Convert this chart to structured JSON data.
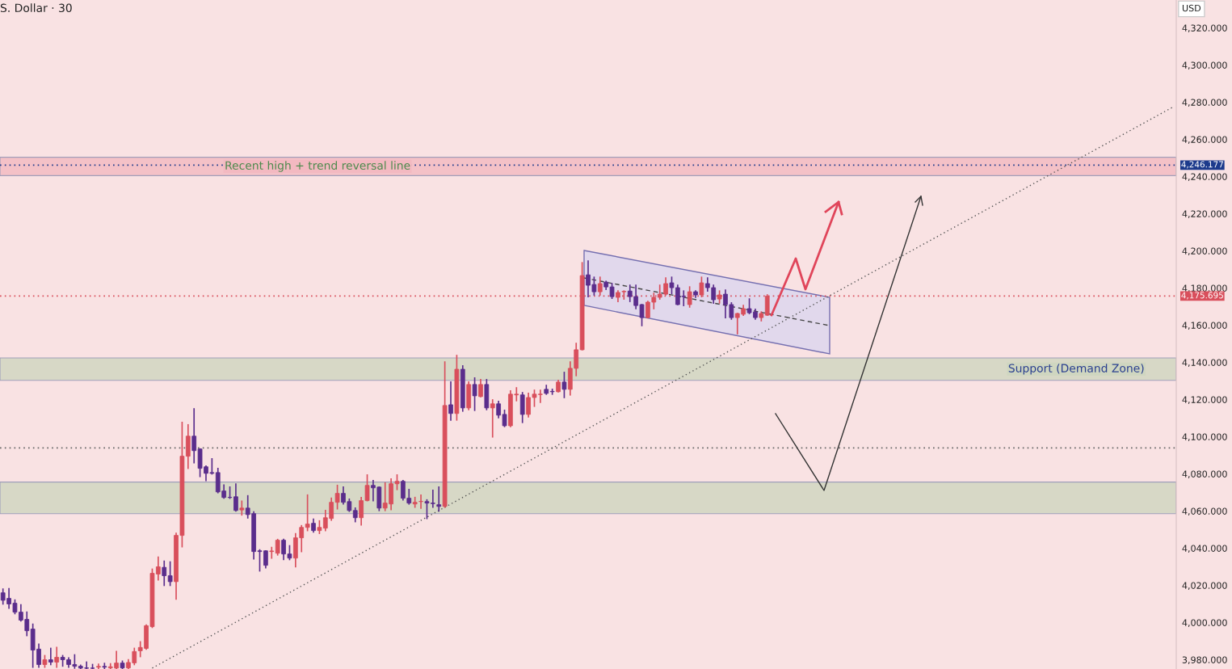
{
  "chart_data": {
    "type": "candlestick",
    "title": "S. Dollar · 30",
    "annotations": [
      "USD"
    ],
    "categories": [
      null,
      null,
      null,
      null,
      null,
      null,
      null,
      null,
      null,
      null,
      null,
      null,
      null,
      null,
      null,
      null,
      null,
      null,
      null,
      null,
      null,
      null,
      null,
      null,
      null,
      null,
      null,
      null,
      null,
      null,
      null,
      null,
      null,
      null,
      null,
      null,
      null,
      null,
      null,
      null,
      null,
      null,
      null,
      null,
      null,
      null,
      null,
      null,
      null,
      null,
      null,
      null,
      null,
      null,
      null,
      null,
      null,
      null,
      null,
      null,
      null,
      null,
      null,
      null,
      null,
      null,
      null,
      null,
      null,
      null,
      null,
      null,
      null,
      null,
      null,
      null,
      null,
      null,
      null,
      null,
      null,
      null,
      null,
      null,
      null,
      null,
      null,
      null,
      null,
      null,
      null,
      null,
      null,
      null,
      null,
      null,
      null,
      null,
      null,
      null,
      null,
      null,
      null,
      null,
      null,
      null,
      null,
      null,
      null,
      null,
      null,
      null,
      null,
      null,
      null,
      null,
      null,
      null,
      null,
      null,
      null,
      null,
      null,
      null,
      null,
      null,
      null,
      null,
      null,
      null,
      null,
      null,
      null,
      null,
      null,
      null,
      null,
      null,
      null,
      null,
      null,
      null,
      null,
      null,
      null,
      null,
      null,
      null,
      null,
      null,
      null,
      null,
      null,
      null,
      null,
      null,
      null,
      null,
      null,
      null,
      null,
      null,
      null,
      null,
      null,
      null,
      null,
      null,
      null,
      null,
      null,
      null,
      null,
      null,
      null,
      null,
      null,
      null,
      null,
      null,
      null,
      null,
      null,
      null,
      null,
      null,
      null,
      null,
      null,
      null,
      null,
      null,
      null,
      null,
      null,
      null,
      null
    ],
    "series": [
      {
        "type": "line",
        "color": "#555555",
        "line_style": "dotted",
        "values": [
          null,
          null,
          null,
          null,
          null,
          null,
          null,
          null,
          null,
          null,
          null,
          null,
          null,
          null,
          null,
          null,
          null,
          null,
          null,
          null,
          null,
          null,
          null,
          null,
          null,
          3975.5,
          null,
          null,
          null,
          null,
          null,
          null,
          null,
          null,
          null,
          null,
          null,
          null,
          null,
          null,
          null,
          null,
          null,
          null,
          null,
          null,
          null,
          null,
          null,
          null,
          null,
          null,
          null,
          null,
          null,
          null,
          null,
          null,
          null,
          null,
          null,
          null,
          null,
          null,
          null,
          null,
          null,
          null,
          null,
          null,
          null,
          null,
          null,
          null,
          null,
          null,
          null,
          null,
          null,
          null,
          null,
          null,
          null,
          null,
          null,
          null,
          null,
          null,
          null,
          null,
          null,
          null,
          null,
          null,
          null,
          null,
          null,
          null,
          null,
          null,
          null,
          null,
          null,
          null,
          null,
          null,
          null,
          null,
          null,
          null,
          null,
          null,
          null,
          null,
          null,
          null,
          null,
          null,
          null,
          null,
          null,
          null,
          null,
          null,
          null,
          null,
          null,
          null,
          null,
          null,
          null,
          null,
          null,
          null,
          null,
          null,
          null,
          null,
          null,
          null,
          null,
          null,
          null,
          null,
          null,
          null,
          null,
          null,
          null,
          null,
          null,
          null,
          null,
          null,
          null,
          null,
          null,
          null,
          null,
          null,
          null,
          null,
          null,
          null,
          null,
          null,
          null,
          null,
          null,
          null,
          null,
          null,
          null,
          null,
          null,
          null,
          null,
          null,
          null,
          null,
          null,
          null,
          null,
          null,
          null,
          null,
          null,
          null,
          null,
          null,
          null,
          null,
          null,
          null,
          null,
          null,
          4277.5
        ]
      }
    ],
    "ohlc": [
      [
        4016,
        4018,
        4010,
        4012
      ],
      [
        4013.0,
        4018.2,
        4007.8,
        4010.0
      ],
      [
        4010.4,
        4012.1,
        4004.8,
        4005.6
      ],
      [
        4005.6,
        4009.5,
        4000.9,
        4001.3
      ],
      [
        4001.7,
        4005.6,
        3993.0,
        3995.6
      ],
      [
        3996.5,
        3999.1,
        3976,
        3985.2
      ],
      [
        3985.7,
        3988.3,
        3976,
        3977.4
      ],
      [
        3977.4,
        3982.2,
        3976,
        3980
      ],
      [
        3980,
        3986.1,
        3977.4,
        3978.7
      ],
      [
        3978.7,
        3986.6,
        3976,
        3981.3
      ],
      [
        3981.3,
        3982.2,
        3976.6,
        3980
      ],
      [
        3980,
        3980.9,
        3976,
        3977.4
      ],
      [
        3977.4,
        3982.6,
        3975.5,
        3976.5
      ],
      [
        3976.5,
        3977,
        3975.2,
        3975.5
      ],
      [
        3975.6,
        3978.7,
        3975.2,
        3975.4
      ],
      [
        3975.5,
        3977.4,
        3975.2,
        3975.4
      ],
      [
        3976.0,
        3977.6,
        3975.2,
        3976.4
      ],
      [
        3976.4,
        3978.0,
        3975.2,
        3976.0
      ],
      [
        3975.6,
        3977.8,
        3975.2,
        3976.2
      ],
      [
        3975.5,
        3984.4,
        3975.2,
        3978.2
      ],
      [
        3978.2,
        3979.2,
        3975.2,
        3975.6
      ],
      [
        3975.6,
        3980,
        3975.2,
        3978.5
      ],
      [
        3978.3,
        3986.1,
        3977.4,
        3984.4
      ],
      [
        3984.8,
        3989.6,
        3981.7,
        3986.6
      ],
      [
        3986.1,
        3998.7,
        3985.7,
        3998.3
      ],
      [
        3997.8,
        4028.7,
        3997.4,
        4026.5
      ],
      [
        4026.1,
        4035.2,
        4023,
        4030
      ],
      [
        4029.7,
        4033,
        4020,
        4025.2
      ],
      [
        4025.2,
        4032.6,
        4020,
        4022
      ],
      [
        4022,
        4048,
        4012.6,
        4046.9
      ],
      [
        4046.9,
        4107.7,
        4040.8,
        4089.5
      ],
      [
        4089.5,
        4106.4,
        4083,
        4100.3
      ],
      [
        4100.3,
        4115,
        4086,
        4092.5
      ],
      [
        4093.4,
        4093.4,
        4078.6,
        4083
      ],
      [
        4083.8,
        4084.2,
        4076.4,
        4080.3
      ],
      [
        4080.7,
        4088.1,
        4080.0,
        4080.3
      ],
      [
        4080.7,
        4082.9,
        4069.9,
        4070.3
      ],
      [
        4070.8,
        4074,
        4067,
        4067.3
      ],
      [
        4067.4,
        4072.9,
        4066.9,
        4067.3
      ],
      [
        4067.7,
        4074.5,
        4060,
        4060.3
      ],
      [
        4060.6,
        4065.3,
        4057.9,
        4061.6
      ],
      [
        4061.6,
        4068.2,
        4056.3,
        4058.1
      ],
      [
        4058.6,
        4059.5,
        4034.3,
        4038.2
      ],
      [
        4038.6,
        4039.1,
        4027.8,
        4038.2
      ],
      [
        4038.6,
        4038.6,
        4029.5,
        4030.8
      ],
      [
        4038.2,
        4040.4,
        4034.7,
        4038.5
      ],
      [
        4037.3,
        4044.7,
        4036.4,
        4044.3
      ],
      [
        4044.3,
        4044.7,
        4033.9,
        4036.9
      ],
      [
        4036.9,
        4041.3,
        4033.9,
        4034.7
      ],
      [
        4034.7,
        4047.8,
        4030,
        4045.6
      ],
      [
        4045.6,
        4052.1,
        4038.2,
        4051.2
      ],
      [
        4051.2,
        4068.6,
        4049.5,
        4053
      ],
      [
        4053.4,
        4055.6,
        4048.7,
        4049.5
      ],
      [
        4049.5,
        4054.7,
        4048,
        4051.2
      ],
      [
        4050.8,
        4060.3,
        4049.5,
        4056.4
      ],
      [
        4056.0,
        4066.9,
        4055.1,
        4064.7
      ],
      [
        4064.7,
        4073.8,
        4061.2,
        4069.5
      ],
      [
        4069.5,
        4072.9,
        4063.8,
        4064.7
      ],
      [
        4065.1,
        4066.4,
        4059.9,
        4060.3
      ],
      [
        4060.3,
        4061.6,
        4054.3,
        4056.4
      ],
      [
        4056.4,
        4067.3,
        4052.5,
        4065.6
      ],
      [
        4065.6,
        4079.4,
        4065.6,
        4073.8
      ],
      [
        4073.8,
        4076.4,
        4065.6,
        4072.5
      ],
      [
        4072.9,
        4072.9,
        4060.3,
        4061.6
      ],
      [
        4061.6,
        4075.1,
        4060.3,
        4064.3
      ],
      [
        4063.8,
        4077.3,
        4060.8,
        4074.7
      ],
      [
        4074.7,
        4079.4,
        4071.6,
        4076
      ],
      [
        4076,
        4076.4,
        4066,
        4066.9
      ],
      [
        4066.9,
        4071.6,
        4063.8,
        4064.3
      ],
      [
        4063.8,
        4067.3,
        4062.1,
        4064.7
      ],
      [
        4065.1,
        4068.6,
        4061.6,
        4065.2
      ],
      [
        4065.1,
        4066,
        4056,
        4064.3
      ],
      [
        4064.3,
        4071.2,
        4062.1,
        4064.0
      ],
      [
        4063.4,
        4072.9,
        4060,
        4062.5
      ],
      [
        4062.5,
        4140.2,
        4062.1,
        4116.8
      ],
      [
        4117.2,
        4129.4,
        4109,
        4112.5
      ],
      [
        4112.5,
        4143.7,
        4109,
        4136.3
      ],
      [
        4136.3,
        4138.1,
        4113.8,
        4115.5
      ],
      [
        4115.5,
        4129.4,
        4114.6,
        4128.1
      ],
      [
        4128.1,
        4131.6,
        4114.2,
        4122.0
      ],
      [
        4121.6,
        4130.7,
        4121.6,
        4128.1
      ],
      [
        4128.1,
        4130.7,
        4114.6,
        4115.5
      ],
      [
        4115.5,
        4119.8,
        4099.9,
        4117.7
      ],
      [
        4117.7,
        4119,
        4110.3,
        4111.6
      ],
      [
        4112.0,
        4114.2,
        4105.5,
        4105.9
      ],
      [
        4105.9,
        4124.6,
        4105.5,
        4122.9
      ],
      [
        4122.5,
        4126.3,
        4119.4,
        4122.9
      ],
      [
        4122.5,
        4123.7,
        4107.7,
        4112.0
      ],
      [
        4112.0,
        4123.3,
        4110.7,
        4121.1
      ],
      [
        4121.1,
        4125,
        4116.4,
        4122.9
      ],
      [
        4122.7,
        4125,
        4118.5,
        4122.9
      ],
      [
        4125.5,
        4127.6,
        4122.9,
        4123.3
      ],
      [
        4124.4,
        4125.5,
        4122.9,
        4124.2
      ],
      [
        4124.2,
        4130.3,
        4124.2,
        4129.4
      ],
      [
        4129.4,
        4134.6,
        4121.1,
        4125.5
      ],
      [
        4125.5,
        4140.2,
        4122.5,
        4136.8
      ],
      [
        4136.8,
        4150.2,
        4132.9,
        4146.8
      ],
      [
        4146.8,
        4193.6,
        4146.8,
        4186.7
      ],
      [
        4187.1,
        4194.5,
        4175.4,
        4181.5
      ],
      [
        4181.9,
        4185.8,
        4176.3,
        4178.0
      ],
      [
        4178.0,
        4185.8,
        4176.3,
        4182.4
      ],
      [
        4183.2,
        4183.6,
        4179.3,
        4180.6
      ],
      [
        4180.6,
        4182.4,
        4174.5,
        4175.4
      ],
      [
        4175.0,
        4178.4,
        4172.8,
        4177.6
      ],
      [
        4178.0,
        4178.4,
        4174.1,
        4178.2
      ],
      [
        4178.4,
        4181.5,
        4172.8,
        4175.4
      ],
      [
        4175.4,
        4181.5,
        4168.9,
        4170.6
      ],
      [
        4171.1,
        4171.1,
        4159.8,
        4164.1
      ],
      [
        4164.1,
        4172.8,
        4164.1,
        4172.4
      ],
      [
        4172.4,
        4177.1,
        4168.9,
        4175.0
      ],
      [
        4175.0,
        4181.5,
        4174.1,
        4176.7
      ],
      [
        4176.7,
        4185.4,
        4176.3,
        4182.4
      ],
      [
        4182.8,
        4185.8,
        4177.1,
        4180.2
      ],
      [
        4180.2,
        4181.5,
        4171.1,
        4171.1
      ],
      [
        4175.6,
        4178.4,
        4170.6,
        4175.4
      ],
      [
        4171.1,
        4180.6,
        4169.8,
        4178.0
      ],
      [
        4178.0,
        4178.4,
        4175.0,
        4176.3
      ],
      [
        4176.3,
        4185.8,
        4175.4,
        4182.8
      ],
      [
        4182.4,
        4185.4,
        4178.4,
        4180.2
      ],
      [
        4180.2,
        4181.5,
        4171.9,
        4173.7
      ],
      [
        4174.1,
        4178.4,
        4172.0,
        4176.3
      ],
      [
        4176.7,
        4178.9,
        4164.1,
        4171.1
      ],
      [
        4171.1,
        4172.0,
        4163.3,
        4164.1
      ],
      [
        4164.1,
        4166.3,
        4155.4,
        4166.3
      ],
      [
        4165.9,
        4170.6,
        4165.4,
        4168.9
      ],
      [
        4168.9,
        4174.1,
        4166.3,
        4166.7
      ],
      [
        4167.1,
        4168.5,
        4163.3,
        4164.1
      ],
      [
        4164.1,
        4167.1,
        4162.4,
        4166.3
      ],
      [
        4165.4,
        4176.3,
        4165.4,
        4175.6
      ],
      null,
      null,
      null,
      null,
      null,
      null,
      null,
      null,
      null,
      null,
      null,
      null,
      null,
      null,
      null,
      null,
      null,
      null,
      null,
      null,
      null,
      null,
      null,
      null,
      null,
      null,
      null,
      null,
      null,
      null,
      null,
      null,
      null,
      null,
      null,
      null,
      null,
      null,
      null,
      null,
      null,
      null,
      null,
      null,
      null,
      null,
      null,
      null,
      null,
      null,
      null,
      null,
      null,
      null,
      null,
      null,
      null,
      null,
      null,
      null,
      null,
      null,
      null,
      null,
      null,
      null,
      null,
      null
    ],
    "colors": [
      "#5a2d8c",
      "#5a2d8c",
      "#5a2d8c",
      "#5a2d8c",
      "#5a2d8c",
      "#5a2d8c",
      "#5a2d8c",
      "#d94f5c",
      "#5a2d8c",
      "#d94f5c",
      "#5a2d8c",
      "#5a2d8c",
      "#5a2d8c",
      "#5a2d8c",
      "#5a2d8c",
      "#5a2d8c",
      "#d94f5c",
      "#5a2d8c",
      "#d94f5c",
      "#d94f5c",
      "#5a2d8c",
      "#d94f5c",
      "#d94f5c",
      "#d94f5c",
      "#d94f5c",
      "#d94f5c",
      "#d94f5c",
      "#5a2d8c",
      "#5a2d8c",
      "#d94f5c",
      "#d94f5c",
      "#d94f5c",
      "#5a2d8c",
      "#5a2d8c",
      "#5a2d8c",
      "#5a2d8c",
      "#5a2d8c",
      "#5a2d8c",
      "#5a2d8c",
      "#5a2d8c",
      "#d94f5c",
      "#5a2d8c",
      "#5a2d8c",
      "#5a2d8c",
      "#5a2d8c",
      "#d94f5c",
      "#d94f5c",
      "#5a2d8c",
      "#5a2d8c",
      "#d94f5c",
      "#d94f5c",
      "#d94f5c",
      "#5a2d8c",
      "#d94f5c",
      "#d94f5c",
      "#d94f5c",
      "#d94f5c",
      "#5a2d8c",
      "#5a2d8c",
      "#5a2d8c",
      "#d94f5c",
      "#d94f5c",
      "#5a2d8c",
      "#5a2d8c",
      "#d94f5c",
      "#d94f5c",
      "#d94f5c",
      "#5a2d8c",
      "#5a2d8c",
      "#d94f5c",
      "#d94f5c",
      "#5a2d8c",
      "#5a2d8c",
      "#5a2d8c",
      "#d94f5c",
      "#5a2d8c",
      "#d94f5c",
      "#5a2d8c",
      "#d94f5c",
      "#5a2d8c",
      "#d94f5c",
      "#5a2d8c",
      "#d94f5c",
      "#5a2d8c",
      "#5a2d8c",
      "#d94f5c",
      "#d94f5c",
      "#5a2d8c",
      "#d94f5c",
      "#d94f5c",
      "#d94f5c",
      "#5a2d8c",
      "#5a2d8c",
      "#d94f5c",
      "#5a2d8c",
      "#d94f5c",
      "#d94f5c",
      "#d94f5c",
      "#5a2d8c",
      "#5a2d8c",
      "#d94f5c",
      "#5a2d8c",
      "#5a2d8c",
      "#d94f5c",
      "#d94f5c",
      "#5a2d8c",
      "#5a2d8c",
      "#5a2d8c",
      "#d94f5c",
      "#d94f5c",
      "#d94f5c",
      "#d94f5c",
      "#5a2d8c",
      "#5a2d8c",
      "#5a2d8c",
      "#d94f5c",
      "#5a2d8c",
      "#d94f5c",
      "#5a2d8c",
      "#5a2d8c",
      "#d94f5c",
      "#5a2d8c",
      "#5a2d8c",
      "#d94f5c",
      "#d94f5c",
      "#5a2d8c",
      "#5a2d8c",
      "#d94f5c",
      "#d94f5c",
      null,
      null,
      null,
      null,
      null,
      null,
      null,
      null,
      null,
      null,
      null,
      null,
      null,
      null,
      null,
      null,
      null,
      null,
      null,
      null,
      null,
      null,
      null,
      null,
      null,
      null,
      null,
      null,
      null,
      null,
      null,
      null,
      null,
      null,
      null,
      null,
      null,
      null,
      null,
      null,
      null,
      null,
      null,
      null,
      null,
      null,
      null,
      null,
      null,
      null,
      null,
      null,
      null,
      null,
      null,
      null,
      null,
      null,
      null,
      null,
      null,
      null,
      null,
      null,
      null,
      null,
      null,
      null
    ],
    "ylim": [
      3975,
      4335
    ],
    "yticks": [
      {
        "value": 3980,
        "label": "3,980.000"
      },
      {
        "value": 4000,
        "label": "4,000.000"
      },
      {
        "value": 4020,
        "label": "4,020.000"
      },
      {
        "value": 4040,
        "label": "4,040.000"
      },
      {
        "value": 4060,
        "label": "4,060.000"
      },
      {
        "value": 4080,
        "label": "4,080.000"
      },
      {
        "value": 4100,
        "label": "4,100.000"
      },
      {
        "value": 4120,
        "label": "4,120.000"
      },
      {
        "value": 4140,
        "label": "4,140.000"
      },
      {
        "value": 4160,
        "label": "4,160.000"
      },
      {
        "value": 4180,
        "label": "4,180.000"
      },
      {
        "value": 4200,
        "label": "4,200.000"
      },
      {
        "value": 4220,
        "label": "4,220.000"
      },
      {
        "value": 4240,
        "label": "4,240.000"
      },
      {
        "value": 4260,
        "label": "4,260.000"
      },
      {
        "value": 4280,
        "label": "4,280.000"
      },
      {
        "value": 4300,
        "label": "4,300.000"
      },
      {
        "value": 4320,
        "label": "4,320.000"
      }
    ],
    "ref_lines": [
      {
        "axis": "y",
        "value": 4246.177,
        "label": "4,246.177",
        "color": "#1c3a8c",
        "line_style": "dotted"
      },
      {
        "axis": "y",
        "value": 4175.695,
        "label": "4,175.695",
        "color": "#d94f5c",
        "line_style": "dotted"
      },
      {
        "axis": "y",
        "value": 4094,
        "color": "#666666",
        "line_style": "dotted"
      }
    ],
    "bands": [
      {
        "axis": "y",
        "from": 4240.5,
        "to": 4250.4,
        "label": "Recent high + trend reversal line",
        "color": "#f3b9c1"
      },
      {
        "axis": "y",
        "from": 4130.3,
        "to": 4142.4,
        "label": "Support (Demand Zone)",
        "color": "#cfd6c0"
      },
      {
        "axis": "y",
        "from": 4058.6,
        "to": 4075.6,
        "color": "#cfd6c0"
      }
    ],
    "tick_labels": "y",
    "grid": false,
    "legend": false
  }
}
